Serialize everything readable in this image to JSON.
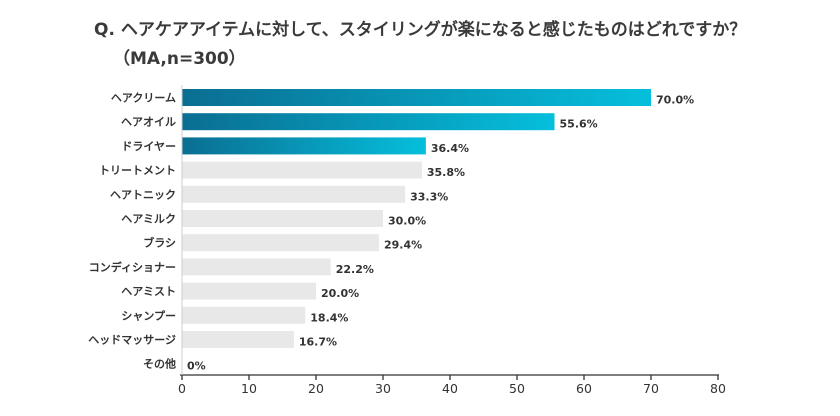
{
  "question": {
    "line1": "Q. ヘアケアアイテムに対して、スタイリングが楽になると感じたものはどれですか？",
    "line2": "（MA,n=300）"
  },
  "colors": {
    "highlight_start": "#0a6e92",
    "highlight_end": "#05bfdc",
    "bar_gray": "#e8e8e8",
    "axis": "#333333",
    "text": "#333333"
  },
  "chart_data": {
    "type": "bar",
    "orientation": "horizontal",
    "title": "",
    "xlabel": "",
    "ylabel": "",
    "categories": [
      "ヘアクリーム",
      "ヘアオイル",
      "ドライヤー",
      "トリートメント",
      "ヘアトニック",
      "ヘアミルク",
      "ブラシ",
      "コンディショナー",
      "ヘアミスト",
      "シャンプー",
      "ヘッドマッサージ",
      "その他"
    ],
    "values": [
      70.0,
      55.6,
      36.4,
      35.8,
      33.3,
      30.0,
      29.4,
      22.2,
      20.0,
      18.4,
      16.7,
      0
    ],
    "value_labels": [
      "70.0%",
      "55.6%",
      "36.4%",
      "35.8%",
      "33.3%",
      "30.0%",
      "29.4%",
      "22.2%",
      "20.0%",
      "18.4%",
      "16.7%",
      "0%"
    ],
    "highlighted_top_n": 3,
    "xlim": [
      0,
      80
    ],
    "xticks": [
      0,
      10,
      20,
      30,
      40,
      50,
      60,
      70,
      80
    ],
    "xtick_labels": [
      "0",
      "10",
      "20",
      "30",
      "40",
      "50",
      "60",
      "70",
      "80"
    ],
    "grid": false,
    "legend": "none"
  }
}
